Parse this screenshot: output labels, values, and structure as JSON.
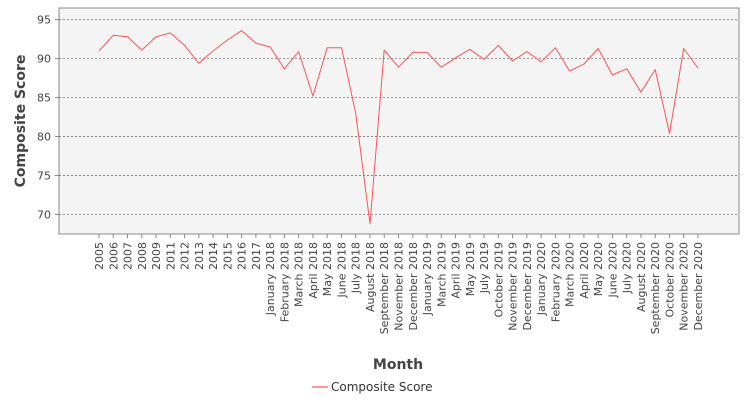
{
  "chart_data": {
    "type": "line",
    "title": "",
    "xlabel": "Month",
    "ylabel": "Composite Score",
    "ylim": [
      67.5,
      96.5
    ],
    "yticks": [
      70,
      75,
      80,
      85,
      90,
      95
    ],
    "grid": true,
    "legend": "bottom-center",
    "categories": [
      "2005",
      "2006",
      "2007",
      "2008",
      "2009",
      "2011",
      "2012",
      "2013",
      "2014",
      "2015",
      "2016",
      "2017",
      "January 2018",
      "February 2018",
      "March 2018",
      "April 2018",
      "May 2018",
      "June 2018",
      "July 2018",
      "August 2018",
      "September 2018",
      "November 2018",
      "December 2018",
      "January 2019",
      "March 2019",
      "April 2019",
      "May 2019",
      "July 2019",
      "October 2019",
      "November 2019",
      "December 2019",
      "January 2020",
      "February 2020",
      "March 2020",
      "April 2020",
      "May 2020",
      "June 2020",
      "July 2020",
      "August 2020",
      "September 2020",
      "October 2020",
      "November 2020",
      "December 2020"
    ],
    "series": [
      {
        "name": "Composite Score",
        "color": "#ff5555",
        "values": [
          91.0,
          93.0,
          92.8,
          91.1,
          92.8,
          93.3,
          91.7,
          89.4,
          91.0,
          92.4,
          93.6,
          92.0,
          91.5,
          88.7,
          90.9,
          85.2,
          91.4,
          91.4,
          83.0,
          68.8,
          91.1,
          88.9,
          90.8,
          90.8,
          88.9,
          90.1,
          91.2,
          89.9,
          91.7,
          89.7,
          90.9,
          89.6,
          91.4,
          88.4,
          89.3,
          91.3,
          87.9,
          88.7,
          85.7,
          88.6,
          80.4,
          91.3,
          88.8
        ]
      }
    ]
  }
}
